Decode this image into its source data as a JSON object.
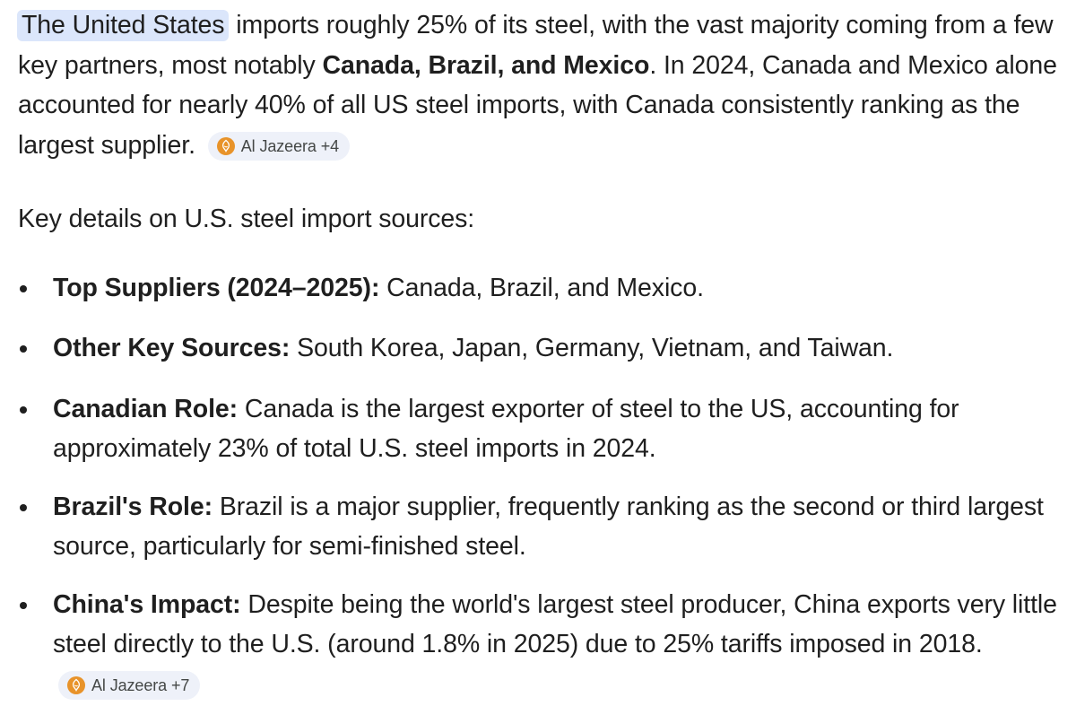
{
  "intro": {
    "highlighted_subject": "The United States",
    "text_a": " imports roughly 25% of its steel, with the vast majority coming from a few key partners, most notably ",
    "bold_partners": "Canada, Brazil, and Mexico",
    "text_b": ". In 2024, Canada and Mexico alone accounted for nearly 40% of all US steel imports, with Canada consistently ranking as the largest supplier.",
    "citation": {
      "icon": "al-jazeera-logo-icon",
      "label": "Al Jazeera +4"
    }
  },
  "details_heading": "Key details on U.S. steel import sources:",
  "details": [
    {
      "term": "Top Suppliers (2024–2025):",
      "text": " Canada, Brazil, and Mexico."
    },
    {
      "term": "Other Key Sources:",
      "text": " South Korea, Japan, Germany, Vietnam, and Taiwan."
    },
    {
      "term": "Canadian Role:",
      "text": " Canada is the largest exporter of steel to the US, accounting for approximately 23% of total U.S. steel imports in 2024."
    },
    {
      "term": "Brazil's Role:",
      "text": " Brazil is a major supplier, frequently ranking as the second or third largest source, particularly for semi-finished steel."
    },
    {
      "term": "China's Impact:",
      "text": " Despite being the world's largest steel producer, China exports very little steel directly to the U.S. (around 1.8% in 2025) due to 25% tariffs imposed in 2018.",
      "citation": {
        "icon": "al-jazeera-logo-icon",
        "label": "Al Jazeera +7"
      }
    }
  ],
  "colors": {
    "text": "#1f1f1f",
    "highlight_bg": "#dbe6fb",
    "chip_bg": "#eef1f9",
    "chip_text": "#444746",
    "logo_orange": "#e8932a"
  }
}
